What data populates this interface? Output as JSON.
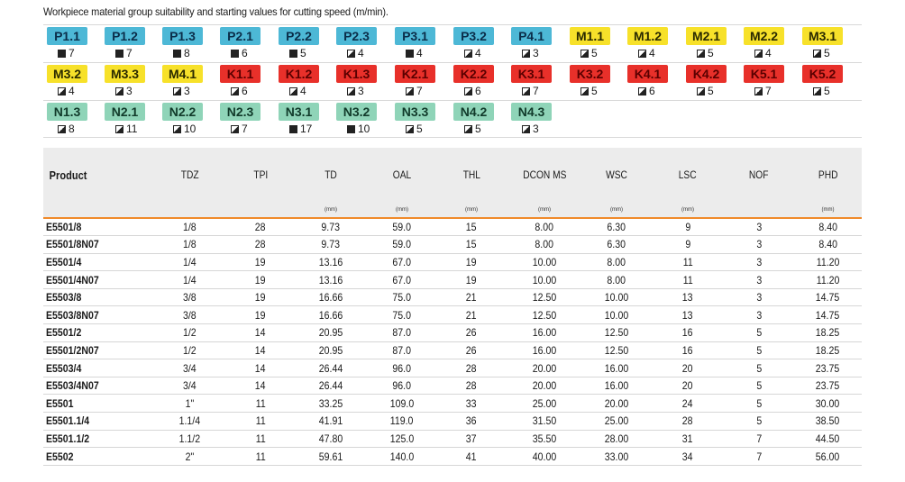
{
  "caption": "Workpiece material group suitability and starting values for cutting speed (m/min).",
  "materials": [
    [
      {
        "code": "P1.1",
        "group": "P",
        "mark": "full",
        "value": "7"
      },
      {
        "code": "P1.2",
        "group": "P",
        "mark": "full",
        "value": "7"
      },
      {
        "code": "P1.3",
        "group": "P",
        "mark": "full",
        "value": "8"
      },
      {
        "code": "P2.1",
        "group": "P",
        "mark": "full",
        "value": "6"
      },
      {
        "code": "P2.2",
        "group": "P",
        "mark": "full",
        "value": "5"
      },
      {
        "code": "P2.3",
        "group": "P",
        "mark": "half",
        "value": "4"
      },
      {
        "code": "P3.1",
        "group": "P",
        "mark": "full",
        "value": "4"
      },
      {
        "code": "P3.2",
        "group": "P",
        "mark": "half",
        "value": "4"
      },
      {
        "code": "P4.1",
        "group": "P",
        "mark": "half",
        "value": "3"
      },
      {
        "code": "M1.1",
        "group": "M",
        "mark": "half",
        "value": "5"
      },
      {
        "code": "M1.2",
        "group": "M",
        "mark": "half",
        "value": "4"
      },
      {
        "code": "M2.1",
        "group": "M",
        "mark": "half",
        "value": "5"
      },
      {
        "code": "M2.2",
        "group": "M",
        "mark": "half",
        "value": "4"
      },
      {
        "code": "M3.1",
        "group": "M",
        "mark": "half",
        "value": "5"
      }
    ],
    [
      {
        "code": "M3.2",
        "group": "M",
        "mark": "half",
        "value": "4"
      },
      {
        "code": "M3.3",
        "group": "M",
        "mark": "half",
        "value": "3"
      },
      {
        "code": "M4.1",
        "group": "M",
        "mark": "half",
        "value": "3"
      },
      {
        "code": "K1.1",
        "group": "K",
        "mark": "half",
        "value": "6"
      },
      {
        "code": "K1.2",
        "group": "K",
        "mark": "half",
        "value": "4"
      },
      {
        "code": "K1.3",
        "group": "K",
        "mark": "half",
        "value": "3"
      },
      {
        "code": "K2.1",
        "group": "K",
        "mark": "half",
        "value": "7"
      },
      {
        "code": "K2.2",
        "group": "K",
        "mark": "half",
        "value": "6"
      },
      {
        "code": "K3.1",
        "group": "K",
        "mark": "half",
        "value": "7"
      },
      {
        "code": "K3.2",
        "group": "K",
        "mark": "half",
        "value": "5"
      },
      {
        "code": "K4.1",
        "group": "K",
        "mark": "half",
        "value": "6"
      },
      {
        "code": "K4.2",
        "group": "K",
        "mark": "half",
        "value": "5"
      },
      {
        "code": "K5.1",
        "group": "K",
        "mark": "half",
        "value": "7"
      },
      {
        "code": "K5.2",
        "group": "K",
        "mark": "half",
        "value": "5"
      }
    ],
    [
      {
        "code": "N1.3",
        "group": "N",
        "mark": "half",
        "value": "8"
      },
      {
        "code": "N2.1",
        "group": "N",
        "mark": "half",
        "value": "11"
      },
      {
        "code": "N2.2",
        "group": "N",
        "mark": "half",
        "value": "10"
      },
      {
        "code": "N2.3",
        "group": "N",
        "mark": "half",
        "value": "7"
      },
      {
        "code": "N3.1",
        "group": "N",
        "mark": "full",
        "value": "17"
      },
      {
        "code": "N3.2",
        "group": "N",
        "mark": "full",
        "value": "10"
      },
      {
        "code": "N3.3",
        "group": "N",
        "mark": "half",
        "value": "5"
      },
      {
        "code": "N4.2",
        "group": "N",
        "mark": "half",
        "value": "5"
      },
      {
        "code": "N4.3",
        "group": "N",
        "mark": "half",
        "value": "3"
      }
    ]
  ],
  "group_colors": {
    "P": "#4db8d6",
    "M": "#f7e12a",
    "K": "#e8302a",
    "N": "#8fd4b8"
  },
  "header_accent": "#f08a2a",
  "table": {
    "columns": [
      "Product",
      "TDZ",
      "TPI",
      "TD",
      "OAL",
      "THL",
      "DCON MS",
      "WSC",
      "LSC",
      "NOF",
      "PHD"
    ],
    "units": [
      "",
      "",
      "",
      "(mm)",
      "(mm)",
      "(mm)",
      "(mm)",
      "(mm)",
      "(mm)",
      "",
      "(mm)"
    ],
    "rows": [
      [
        "E5501/8",
        "1/8",
        "28",
        "9.73",
        "59.0",
        "15",
        "8.00",
        "6.30",
        "9",
        "3",
        "8.40"
      ],
      [
        "E5501/8N07",
        "1/8",
        "28",
        "9.73",
        "59.0",
        "15",
        "8.00",
        "6.30",
        "9",
        "3",
        "8.40"
      ],
      [
        "E5501/4",
        "1/4",
        "19",
        "13.16",
        "67.0",
        "19",
        "10.00",
        "8.00",
        "11",
        "3",
        "11.20"
      ],
      [
        "E5501/4N07",
        "1/4",
        "19",
        "13.16",
        "67.0",
        "19",
        "10.00",
        "8.00",
        "11",
        "3",
        "11.20"
      ],
      [
        "E5503/8",
        "3/8",
        "19",
        "16.66",
        "75.0",
        "21",
        "12.50",
        "10.00",
        "13",
        "3",
        "14.75"
      ],
      [
        "E5503/8N07",
        "3/8",
        "19",
        "16.66",
        "75.0",
        "21",
        "12.50",
        "10.00",
        "13",
        "3",
        "14.75"
      ],
      [
        "E5501/2",
        "1/2",
        "14",
        "20.95",
        "87.0",
        "26",
        "16.00",
        "12.50",
        "16",
        "5",
        "18.25"
      ],
      [
        "E5501/2N07",
        "1/2",
        "14",
        "20.95",
        "87.0",
        "26",
        "16.00",
        "12.50",
        "16",
        "5",
        "18.25"
      ],
      [
        "E5503/4",
        "3/4",
        "14",
        "26.44",
        "96.0",
        "28",
        "20.00",
        "16.00",
        "20",
        "5",
        "23.75"
      ],
      [
        "E5503/4N07",
        "3/4",
        "14",
        "26.44",
        "96.0",
        "28",
        "20.00",
        "16.00",
        "20",
        "5",
        "23.75"
      ],
      [
        "E5501",
        "1\"",
        "11",
        "33.25",
        "109.0",
        "33",
        "25.00",
        "20.00",
        "24",
        "5",
        "30.00"
      ],
      [
        "E5501.1/4",
        "1.1/4",
        "11",
        "41.91",
        "119.0",
        "36",
        "31.50",
        "25.00",
        "28",
        "5",
        "38.50"
      ],
      [
        "E5501.1/2",
        "1.1/2",
        "11",
        "47.80",
        "125.0",
        "37",
        "35.50",
        "28.00",
        "31",
        "7",
        "44.50"
      ],
      [
        "E5502",
        "2\"",
        "11",
        "59.61",
        "140.0",
        "41",
        "40.00",
        "33.00",
        "34",
        "7",
        "56.00"
      ]
    ]
  }
}
